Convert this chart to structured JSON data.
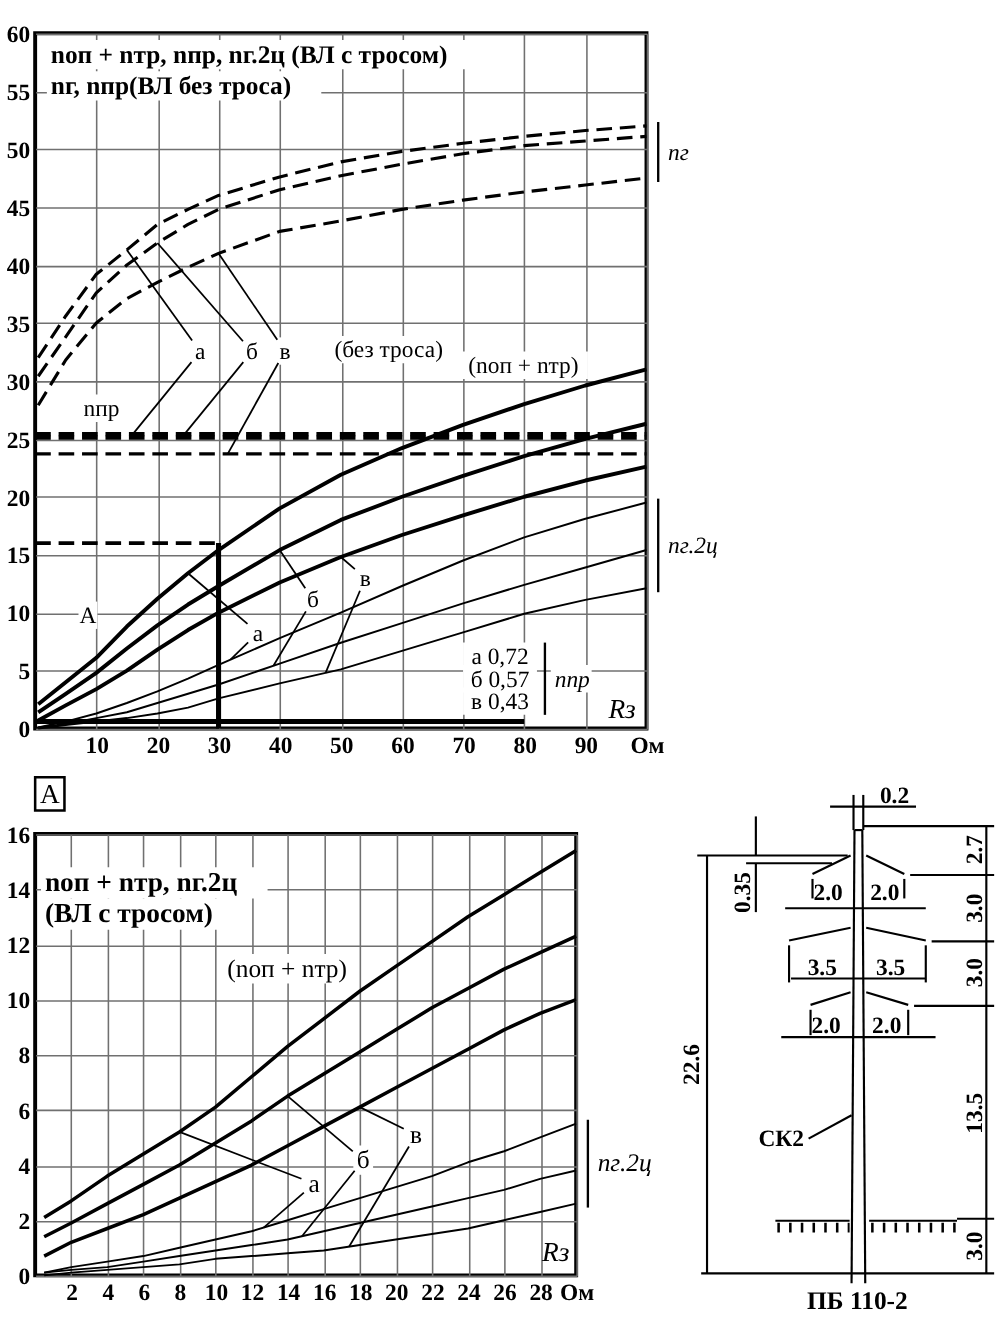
{
  "chart_data": [
    {
      "type": "line",
      "xlabel": "Rз",
      "xlim": [
        0,
        100
      ],
      "ylim": [
        0,
        60
      ],
      "xticks": [
        10,
        20,
        30,
        40,
        50,
        60,
        70,
        80,
        90,
        {
          "value": 100,
          "label": "Ом"
        }
      ],
      "yticks": [
        0,
        5,
        10,
        15,
        20,
        25,
        30,
        35,
        40,
        45,
        50,
        55,
        60
      ],
      "grid": true,
      "line_style": "solid",
      "series": [
        {
          "color": "#000000",
          "line_style": "dashed",
          "x": [
            0.5,
            5,
            10,
            15,
            20,
            25,
            30,
            40,
            50,
            60,
            70,
            80,
            90,
            100
          ],
          "values": [
            32.0,
            35.6,
            39.2,
            41.3,
            43.5,
            44.8,
            46.0,
            47.6,
            48.9,
            49.8,
            50.5,
            51.1,
            51.6,
            52.0
          ]
        },
        {
          "color": "#000000",
          "line_style": "dashed",
          "x": [
            0.5,
            5,
            10,
            15,
            20,
            25,
            30,
            40,
            50,
            60,
            70,
            80,
            90,
            100
          ],
          "values": [
            30.4,
            33.8,
            37.6,
            40.0,
            41.9,
            43.5,
            44.8,
            46.5,
            47.7,
            48.7,
            49.6,
            50.3,
            50.7,
            51.1
          ]
        },
        {
          "color": "#000000",
          "line_style": "dashed",
          "x": [
            0.5,
            5,
            10,
            15,
            20,
            25,
            30,
            40,
            50,
            60,
            70,
            80,
            90,
            100
          ],
          "values": [
            27.9,
            31.8,
            35.0,
            37.1,
            38.5,
            39.8,
            41.0,
            42.9,
            43.8,
            44.8,
            45.6,
            46.3,
            46.9,
            47.5
          ]
        },
        {
          "color": "#000000",
          "line_style": "dashed",
          "x": [
            0,
            100
          ],
          "values": [
            25.4,
            25.4
          ]
        },
        {
          "color": "#000000",
          "line_style": "dashed",
          "x": [
            0,
            100
          ],
          "values": [
            25.1,
            25.1
          ]
        },
        {
          "color": "#000000",
          "line_style": "dashed",
          "x": [
            0,
            100
          ],
          "values": [
            23.7,
            23.7
          ]
        },
        {
          "color": "#000000",
          "x": [
            0.5,
            5,
            10,
            15,
            20,
            25,
            30,
            40,
            50,
            60,
            70,
            80,
            90,
            100
          ],
          "values": [
            2.1,
            4.0,
            6.1,
            8.8,
            11.2,
            13.4,
            15.4,
            19.0,
            21.9,
            24.2,
            26.2,
            28.0,
            29.6,
            31.0
          ]
        },
        {
          "color": "#000000",
          "x": [
            0.5,
            5,
            10,
            15,
            20,
            25,
            30,
            40,
            50,
            60,
            70,
            80,
            90,
            100
          ],
          "values": [
            1.4,
            3.0,
            4.8,
            6.9,
            8.9,
            10.7,
            12.3,
            15.4,
            18.0,
            20.0,
            21.8,
            23.5,
            25.0,
            26.3
          ]
        },
        {
          "color": "#000000",
          "x": [
            0.5,
            5,
            10,
            15,
            20,
            25,
            30,
            40,
            50,
            60,
            70,
            80,
            90,
            100
          ],
          "values": [
            0.7,
            2.0,
            3.4,
            5.0,
            6.8,
            8.5,
            10.0,
            12.6,
            14.8,
            16.7,
            18.4,
            20.0,
            21.4,
            22.6
          ]
        },
        {
          "color": "#000000",
          "x": [
            0.5,
            5,
            10,
            15,
            20,
            25,
            30,
            40,
            50,
            60,
            70,
            80,
            90,
            100
          ],
          "values": [
            0.1,
            0.6,
            1.3,
            2.2,
            3.2,
            4.3,
            5.5,
            7.8,
            10.0,
            12.3,
            14.5,
            16.5,
            18.1,
            19.5
          ]
        },
        {
          "color": "#000000",
          "x": [
            0.5,
            5,
            10,
            15,
            20,
            25,
            30,
            40,
            50,
            60,
            70,
            80,
            90,
            100
          ],
          "values": [
            0.1,
            0.4,
            0.9,
            1.4,
            2.2,
            3.0,
            3.8,
            5.6,
            7.4,
            9.1,
            10.8,
            12.4,
            13.9,
            15.4
          ]
        },
        {
          "color": "#000000",
          "x": [
            0.5,
            5,
            10,
            15,
            20,
            25,
            30,
            40,
            50,
            60,
            70,
            80,
            90,
            100
          ],
          "values": [
            0.0,
            0.3,
            0.6,
            0.9,
            1.3,
            1.8,
            2.6,
            3.9,
            5.1,
            6.7,
            8.3,
            9.9,
            11.1,
            12.1
          ]
        },
        {
          "color": "#000000",
          "x": [
            0,
            80
          ],
          "values": [
            0.6,
            0.6
          ]
        },
        {
          "color": "#000000",
          "line_style": "dashed",
          "x": [
            0,
            30
          ],
          "values": [
            16,
            16
          ]
        },
        {
          "color": "#000000",
          "x": [
            30,
            30
          ],
          "values": [
            16,
            0
          ]
        }
      ],
      "annotations": [
        "nоп + nтр, nпр, nг.2ц (ВЛ с тросом)",
        "nг, nпр(ВЛ без троса)",
        "nг",
        {
          "text": "а",
          "x": 15,
          "y": 41.3
        },
        {
          "text": "б",
          "x": 20,
          "y": 41.9
        },
        {
          "text": "в",
          "x": 30,
          "y": 41.0
        },
        "(без троса)",
        "(nоп + nтр)",
        "nпр",
        "А",
        {
          "text": "а",
          "x": 25,
          "y": 13.4
        },
        {
          "text": "б",
          "x": 40,
          "y": 15.4
        },
        {
          "text": "в",
          "x": 50,
          "y": 14.8
        },
        "nг.2ц",
        "а 0,72",
        "б 0,57",
        "в 0,43",
        "nпр"
      ]
    },
    {
      "type": "line",
      "title": "А",
      "xlabel": "Rз",
      "xlim": [
        0,
        30
      ],
      "ylim": [
        0,
        16
      ],
      "xticks": [
        2,
        4,
        6,
        8,
        10,
        12,
        14,
        16,
        18,
        20,
        22,
        24,
        26,
        28,
        {
          "value": 30,
          "label": "Ом"
        }
      ],
      "yticks": [
        0,
        2,
        4,
        6,
        8,
        10,
        12,
        14,
        16
      ],
      "grid": true,
      "line_style": "solid",
      "series": [
        {
          "color": "#000000",
          "x": [
            0.5,
            2,
            4,
            6,
            8,
            10,
            12,
            14,
            16,
            18,
            20,
            22,
            24,
            26,
            28,
            30
          ],
          "values": [
            2.1,
            2.7,
            3.6,
            4.4,
            5.2,
            6.1,
            7.2,
            8.3,
            9.3,
            10.3,
            11.2,
            12.1,
            13.0,
            13.8,
            14.6,
            15.4
          ]
        },
        {
          "color": "#000000",
          "x": [
            0.5,
            2,
            4,
            6,
            8,
            10,
            12,
            14,
            16,
            18,
            20,
            22,
            24,
            26,
            28,
            30
          ],
          "values": [
            1.4,
            1.9,
            2.6,
            3.3,
            4.0,
            4.8,
            5.6,
            6.5,
            7.3,
            8.1,
            8.9,
            9.7,
            10.4,
            11.1,
            11.7,
            12.3
          ]
        },
        {
          "color": "#000000",
          "x": [
            0.5,
            2,
            4,
            6,
            8,
            10,
            12,
            14,
            16,
            18,
            20,
            22,
            24,
            26,
            28,
            30
          ],
          "values": [
            0.7,
            1.2,
            1.7,
            2.2,
            2.8,
            3.4,
            4.0,
            4.7,
            5.4,
            6.1,
            6.8,
            7.5,
            8.2,
            8.9,
            9.5,
            10.0
          ]
        },
        {
          "color": "#000000",
          "x": [
            0.5,
            2,
            4,
            6,
            8,
            10,
            12,
            14,
            16,
            18,
            20,
            22,
            24,
            26,
            28,
            30
          ],
          "values": [
            0.1,
            0.3,
            0.5,
            0.7,
            1.0,
            1.3,
            1.6,
            2.0,
            2.4,
            2.8,
            3.2,
            3.6,
            4.1,
            4.5,
            5.0,
            5.5
          ]
        },
        {
          "color": "#000000",
          "x": [
            0.5,
            2,
            4,
            6,
            8,
            10,
            12,
            14,
            16,
            18,
            20,
            22,
            24,
            26,
            28,
            30
          ],
          "values": [
            0.1,
            0.2,
            0.3,
            0.5,
            0.7,
            0.9,
            1.1,
            1.3,
            1.6,
            1.9,
            2.2,
            2.5,
            2.8,
            3.1,
            3.5,
            3.8
          ]
        },
        {
          "color": "#000000",
          "x": [
            0.5,
            2,
            4,
            6,
            8,
            10,
            12,
            14,
            16,
            18,
            20,
            22,
            24,
            26,
            28,
            30
          ],
          "values": [
            0.0,
            0.1,
            0.2,
            0.3,
            0.4,
            0.6,
            0.7,
            0.8,
            0.9,
            1.1,
            1.3,
            1.5,
            1.7,
            2.0,
            2.3,
            2.6
          ]
        }
      ],
      "annotations": [
        "nоп + nтр, nг.2ц",
        "(ВЛ с тросом)",
        "(nоп + nтр)",
        {
          "text": "а",
          "x": 8,
          "y": 5.2
        },
        {
          "text": "б",
          "x": 14,
          "y": 6.5
        },
        {
          "text": "в",
          "x": 18,
          "y": 6.1
        },
        "nг.2ц"
      ]
    },
    {
      "type": "other",
      "title": "ПБ 110-2",
      "annotations": [
        "0.2",
        "0.35",
        "2.7",
        "2.0",
        "2.0",
        "3.0",
        "3.5",
        "3.5",
        "3.0",
        "2.0",
        "2.0",
        "22.6",
        "13.5",
        "СК2",
        "3.0"
      ]
    }
  ]
}
